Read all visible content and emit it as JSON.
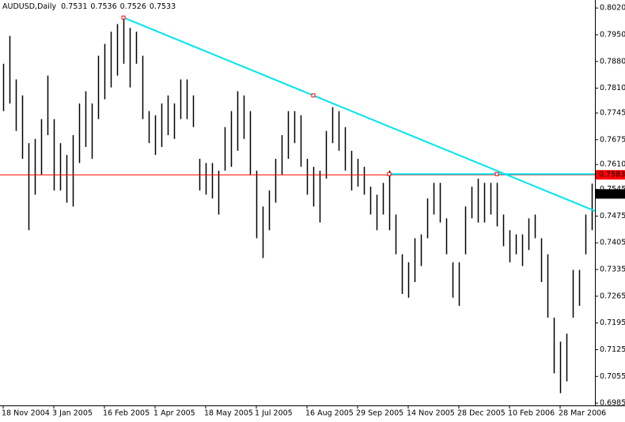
{
  "chart_data": {
    "type": "ohlc",
    "title": "AUDUSD,Daily",
    "header_values": [
      "0.7531",
      "0.7536",
      "0.7526",
      "0.7533"
    ],
    "categories": [
      "18 Nov 2004",
      null,
      null,
      null,
      null,
      null,
      null,
      null,
      "3 Jan 2005",
      null,
      null,
      null,
      null,
      null,
      null,
      null,
      "16 Feb 2005",
      null,
      null,
      null,
      null,
      null,
      null,
      null,
      "1 Apr 2005",
      null,
      null,
      null,
      null,
      null,
      null,
      null,
      "18 May 2005",
      null,
      null,
      null,
      null,
      null,
      null,
      null,
      "1 Jul 2005",
      null,
      null,
      null,
      null,
      null,
      null,
      null,
      "16 Aug 2005",
      null,
      null,
      null,
      null,
      null,
      null,
      null,
      "29 Sep 2005",
      null,
      null,
      null,
      null,
      null,
      null,
      null,
      "14 Nov 2005",
      null,
      null,
      null,
      null,
      null,
      null,
      null,
      "28 Dec 2005",
      null,
      null,
      null,
      null,
      null,
      null,
      null,
      "10 Feb 2006",
      null,
      null,
      null,
      null,
      null,
      null,
      null,
      "28 Mar 2006",
      null,
      null,
      null,
      null,
      null
    ],
    "high": [
      0.7874,
      0.7947,
      0.7833,
      0.7791,
      0.7666,
      0.7677,
      0.7729,
      0.7843,
      0.7729,
      0.7666,
      0.7635,
      0.7687,
      0.777,
      0.7802,
      0.777,
      0.7895,
      0.7926,
      0.7958,
      0.7978,
      0.7995,
      0.7968,
      0.7958,
      0.7895,
      0.775,
      0.7739,
      0.777,
      0.7791,
      0.777,
      0.7833,
      0.7833,
      0.7791,
      0.7625,
      0.7614,
      0.7614,
      0.7594,
      0.7708,
      0.775,
      0.7802,
      0.7791,
      0.775,
      0.7594,
      0.75,
      0.7542,
      0.7625,
      0.7687,
      0.775,
      0.775,
      0.7739,
      0.7625,
      0.7604,
      0.7594,
      0.7698,
      0.776,
      0.775,
      0.7708,
      0.7646,
      0.7625,
      0.7604,
      0.7552,
      0.7531,
      0.7562,
      0.7594,
      0.7479,
      0.7375,
      0.7354,
      0.7417,
      0.7427,
      0.7521,
      0.7562,
      0.7562,
      0.7469,
      0.7354,
      0.7354,
      0.75,
      0.7552,
      0.7573,
      0.7562,
      0.7562,
      0.7562,
      0.7479,
      0.7438,
      0.7427,
      0.7427,
      0.7469,
      0.7479,
      0.7417,
      0.7375,
      0.7209,
      0.7146,
      0.7167,
      0.7334,
      0.7334,
      0.7479,
      0.756
    ],
    "low": [
      0.775,
      0.777,
      0.7698,
      0.7625,
      0.7438,
      0.7531,
      0.7583,
      0.7687,
      0.7542,
      0.7542,
      0.751,
      0.75,
      0.7614,
      0.7656,
      0.7625,
      0.7729,
      0.7781,
      0.7812,
      0.7843,
      0.7874,
      0.7812,
      0.7874,
      0.7729,
      0.7666,
      0.7635,
      0.7656,
      0.7687,
      0.7677,
      0.7729,
      0.7729,
      0.7708,
      0.7542,
      0.7531,
      0.7521,
      0.7479,
      0.7594,
      0.7604,
      0.7646,
      0.7677,
      0.7583,
      0.7417,
      0.7365,
      0.7438,
      0.751,
      0.7583,
      0.7625,
      0.7666,
      0.7604,
      0.7531,
      0.75,
      0.7458,
      0.7573,
      0.7666,
      0.7646,
      0.7594,
      0.7542,
      0.7552,
      0.7531,
      0.7479,
      0.7438,
      0.7479,
      0.7438,
      0.7375,
      0.7271,
      0.7261,
      0.7302,
      0.7344,
      0.7417,
      0.7479,
      0.7458,
      0.7375,
      0.7261,
      0.724,
      0.7375,
      0.7469,
      0.7458,
      0.7458,
      0.7479,
      0.7448,
      0.7396,
      0.7354,
      0.7375,
      0.7344,
      0.7386,
      0.7417,
      0.7302,
      0.7209,
      0.7063,
      0.7011,
      0.7042,
      0.7209,
      0.724,
      0.7375,
      0.7438
    ],
    "color": "#000000",
    "ylim": [
      0.6979,
      0.8041
    ],
    "yticks": [
      {
        "value": 0.802,
        "label": "0.8020"
      },
      {
        "value": 0.795,
        "label": "0.7950"
      },
      {
        "value": 0.788,
        "label": "0.7880"
      },
      {
        "value": 0.781,
        "label": "0.7810"
      },
      {
        "value": 0.7745,
        "label": "0.7745"
      },
      {
        "value": 0.7675,
        "label": "0.7675"
      },
      {
        "value": 0.761,
        "label": "0.7610"
      },
      {
        "value": 0.7545,
        "label": "0.7545"
      },
      {
        "value": 0.7475,
        "label": "0.7475"
      },
      {
        "value": 0.7405,
        "label": "0.7405"
      },
      {
        "value": 0.7335,
        "label": "0.7335"
      },
      {
        "value": 0.7265,
        "label": "0.7265"
      },
      {
        "value": 0.7195,
        "label": "0.7195"
      },
      {
        "value": 0.7125,
        "label": "0.7125"
      },
      {
        "value": 0.7055,
        "label": "0.7055"
      },
      {
        "value": 0.6985,
        "label": "0.6985"
      }
    ],
    "trendlines": [
      {
        "color": "#00e5ee",
        "from": [
          19,
          0.7995
        ],
        "to": [
          49,
          0.7791
        ]
      },
      {
        "color": "#00e5ee",
        "from": [
          61,
          0.7585
        ],
        "to": [
          78,
          0.7585
        ]
      }
    ],
    "hline": {
      "value": 0.7583,
      "label": "0.7583",
      "color": "#ff0000"
    },
    "last_price": {
      "value": 0.7533,
      "label": "0.7533",
      "color": "#000000"
    }
  }
}
